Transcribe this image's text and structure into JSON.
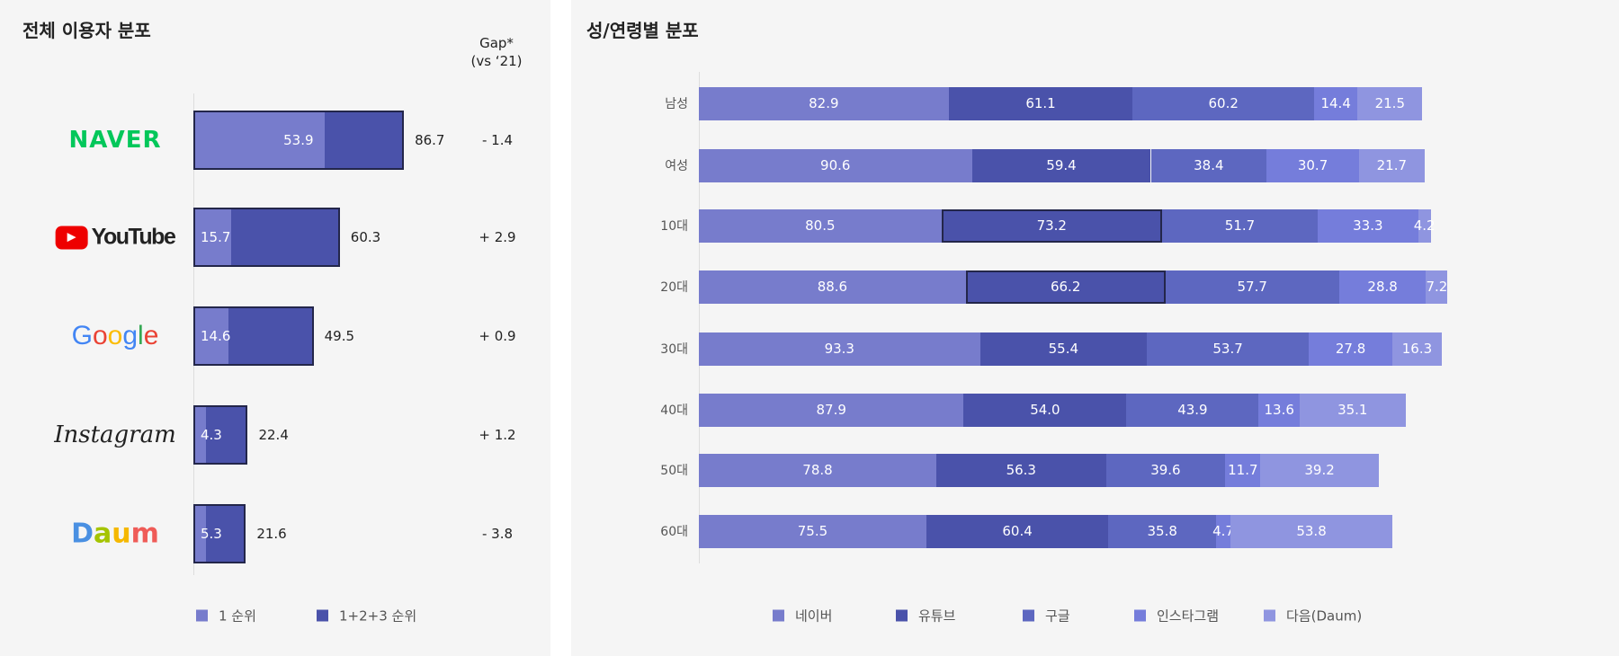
{
  "chart_data": [
    {
      "type": "bar",
      "title": "전체 이용자 분포",
      "gap_header": [
        "Gap*",
        "(vs ‘21)"
      ],
      "categories": [
        "NAVER",
        "YouTube",
        "Google",
        "Instagram",
        "Daum"
      ],
      "series": [
        {
          "name": "1 순위",
          "values": [
            53.9,
            15.7,
            14.6,
            4.3,
            5.3
          ],
          "color": "#777ccc"
        },
        {
          "name": "1+2+3 순위",
          "values": [
            86.7,
            60.3,
            49.5,
            22.4,
            21.6
          ],
          "color": "#4a52aa"
        }
      ],
      "gap": [
        "- 1.4",
        "+ 2.9",
        "+ 0.9",
        "+ 1.2",
        "- 3.8"
      ],
      "legend": "bottom"
    },
    {
      "type": "bar",
      "stacked": true,
      "title": "성/연령별 분포",
      "categories": [
        "남성",
        "여성",
        "10대",
        "20대",
        "30대",
        "40대",
        "50대",
        "60대"
      ],
      "series": [
        {
          "name": "네이버",
          "values": [
            82.9,
            90.6,
            80.5,
            88.6,
            93.3,
            87.9,
            78.8,
            75.5
          ],
          "color": "#777ccc"
        },
        {
          "name": "유튜브",
          "values": [
            61.1,
            59.4,
            73.2,
            66.2,
            55.4,
            54.0,
            56.3,
            60.4
          ],
          "color": "#4a52aa"
        },
        {
          "name": "구글",
          "values": [
            60.2,
            38.4,
            51.7,
            57.7,
            53.7,
            43.9,
            39.6,
            35.8
          ],
          "color": "#5d67c0"
        },
        {
          "name": "인스타그램",
          "values": [
            14.4,
            30.7,
            33.3,
            28.8,
            27.8,
            13.6,
            11.7,
            4.7
          ],
          "color": "#757ddb"
        },
        {
          "name": "다음(Daum)",
          "values": [
            21.5,
            21.7,
            4.2,
            7.2,
            16.3,
            35.1,
            39.2,
            53.8
          ],
          "color": "#8f95e0"
        }
      ],
      "highlighted": [
        {
          "category": "10대",
          "series": "유튜브"
        },
        {
          "category": "20대",
          "series": "유튜브"
        }
      ],
      "legend": "bottom"
    }
  ]
}
